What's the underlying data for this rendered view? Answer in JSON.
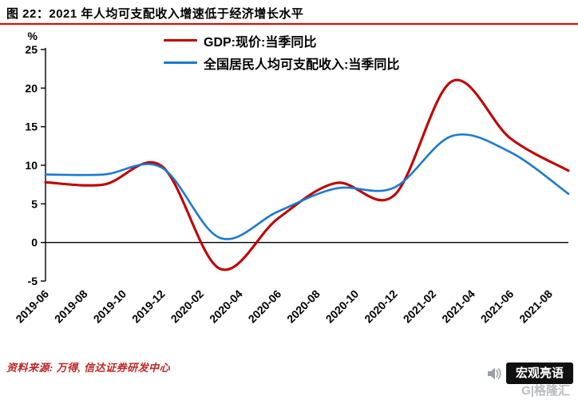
{
  "header": {
    "title": "图 22：2021 年人均可支配收入增速低于经济增长水平"
  },
  "accent_colors": {
    "title_rule_red": "#e60000",
    "source_text_red": "#bf2626"
  },
  "chart_data": {
    "type": "line",
    "title": "2021 年人均可支配收入增速低于经济增长水平",
    "ylabel": "%",
    "ylim": [
      -5,
      25
    ],
    "yticks": [
      25,
      20,
      15,
      10,
      5,
      0,
      -5
    ],
    "grid": false,
    "legend_position": "top-center",
    "x": [
      "2019-06",
      "2019-09",
      "2019-12",
      "2020-03",
      "2020-06",
      "2020-09",
      "2020-12",
      "2021-03",
      "2021-06",
      "2021-09"
    ],
    "x_months": [
      0,
      3,
      6,
      9,
      12,
      15,
      18,
      21,
      24,
      27
    ],
    "xtick_labels": [
      "2019-06",
      "2019-08",
      "2019-10",
      "2019-12",
      "2020-02",
      "2020-04",
      "2020-06",
      "2020-08",
      "2020-10",
      "2020-12",
      "2021-02",
      "2021-04",
      "2021-06",
      "2021-08"
    ],
    "xtick_months": [
      0,
      2,
      4,
      6,
      8,
      10,
      12,
      14,
      16,
      18,
      20,
      22,
      24,
      26
    ],
    "series": [
      {
        "name": "GDP:现价:当季同比",
        "color": "#c00000",
        "values": [
          7.8,
          7.5,
          9.9,
          -3.4,
          3.1,
          7.7,
          6.1,
          20.9,
          13.5,
          9.3
        ]
      },
      {
        "name": "全国居民人均可支配收入:当季同比",
        "color": "#1b7ad0",
        "values": [
          8.8,
          8.8,
          9.7,
          0.6,
          4.0,
          7.0,
          7.1,
          13.8,
          11.7,
          6.3
        ]
      }
    ]
  },
  "footer": {
    "source": "资料来源: 万得, 信达证券研发中心",
    "watermark": "宏观亮语",
    "watermark_sub": "G|格隆汇"
  }
}
